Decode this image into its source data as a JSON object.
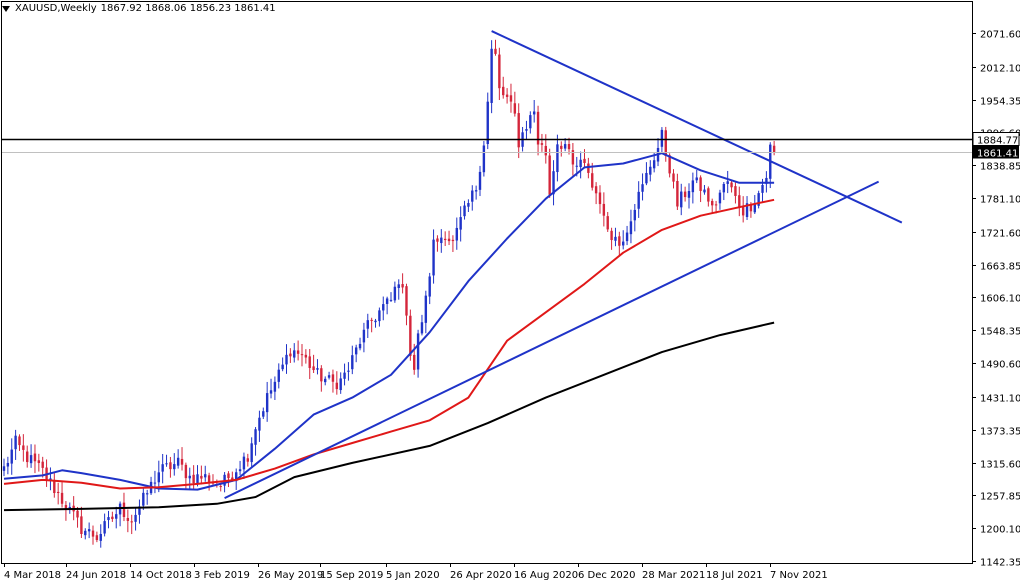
{
  "header": {
    "symbol": "XAUUSD,Weekly",
    "ohlc": "1867.92 1868.06 1856.23 1861.41"
  },
  "colors": {
    "bull": "#1f33c8",
    "bear": "#d4253a",
    "ma_fast": "#1f33c8",
    "ma_mid": "#e01818",
    "ma_slow": "#000000",
    "trendline": "#1f33c8",
    "resistance": "#000000"
  },
  "chart_data": {
    "type": "candlestick",
    "symbol": "XAUUSD",
    "timeframe": "Weekly",
    "ohlc_last": {
      "open": 1867.92,
      "high": 1868.06,
      "low": 1856.23,
      "close": 1861.41
    },
    "x_labels": [
      "4 Mar 2018",
      "24 Jun 2018",
      "14 Oct 2018",
      "3 Feb 2019",
      "26 May 2019",
      "15 Sep 2019",
      "5 Jan 2020",
      "26 Apr 2020",
      "16 Aug 2020",
      "6 Dec 2020",
      "28 Mar 2021",
      "18 Jul 2021",
      "7 Nov 2021"
    ],
    "y_ticks": [
      2071.6,
      2012.1,
      1954.35,
      1896.6,
      1838.85,
      1781.1,
      1721.6,
      1663.85,
      1606.1,
      1548.35,
      1490.6,
      1431.1,
      1373.35,
      1315.6,
      1257.85,
      1200.1,
      1142.35
    ],
    "ylim": [
      1130,
      2110
    ],
    "price_labels": {
      "resistance": "1884.77",
      "current": "1861.41"
    },
    "resistance_level": 1884.77,
    "current_price": 1861.41,
    "waypoints": [
      [
        0,
        1305
      ],
      [
        3,
        1350
      ],
      [
        6,
        1325
      ],
      [
        10,
        1300
      ],
      [
        14,
        1260
      ],
      [
        17,
        1230
      ],
      [
        20,
        1200
      ],
      [
        24,
        1185
      ],
      [
        27,
        1210
      ],
      [
        30,
        1235
      ],
      [
        33,
        1215
      ],
      [
        36,
        1250
      ],
      [
        40,
        1300
      ],
      [
        45,
        1315
      ],
      [
        48,
        1290
      ],
      [
        52,
        1290
      ],
      [
        56,
        1275
      ],
      [
        60,
        1305
      ],
      [
        63,
        1330
      ],
      [
        65,
        1380
      ],
      [
        68,
        1430
      ],
      [
        71,
        1470
      ],
      [
        74,
        1515
      ],
      [
        77,
        1505
      ],
      [
        81,
        1470
      ],
      [
        85,
        1455
      ],
      [
        87,
        1460
      ],
      [
        89,
        1480
      ],
      [
        92,
        1530
      ],
      [
        95,
        1565
      ],
      [
        98,
        1590
      ],
      [
        100,
        1600
      ],
      [
        102,
        1640
      ],
      [
        104,
        1585
      ],
      [
        105,
        1510
      ],
      [
        106,
        1480
      ],
      [
        107,
        1535
      ],
      [
        109,
        1600
      ],
      [
        111,
        1700
      ],
      [
        114,
        1720
      ],
      [
        116,
        1700
      ],
      [
        118,
        1740
      ],
      [
        120,
        1770
      ],
      [
        122,
        1800
      ],
      [
        124,
        1880
      ],
      [
        125,
        1950
      ],
      [
        126,
        2040
      ],
      [
        127,
        2030
      ],
      [
        128,
        1970
      ],
      [
        130,
        1955
      ],
      [
        132,
        1925
      ],
      [
        133,
        1880
      ],
      [
        135,
        1910
      ],
      [
        137,
        1935
      ],
      [
        138,
        1880
      ],
      [
        140,
        1860
      ],
      [
        141,
        1790
      ],
      [
        142,
        1835
      ],
      [
        143,
        1880
      ],
      [
        145,
        1875
      ],
      [
        147,
        1835
      ],
      [
        149,
        1840
      ],
      [
        151,
        1830
      ],
      [
        152,
        1800
      ],
      [
        154,
        1780
      ],
      [
        155,
        1740
      ],
      [
        157,
        1720
      ],
      [
        159,
        1700
      ],
      [
        161,
        1730
      ],
      [
        163,
        1770
      ],
      [
        165,
        1800
      ],
      [
        167,
        1840
      ],
      [
        169,
        1870
      ],
      [
        170,
        1890
      ],
      [
        171,
        1860
      ],
      [
        172,
        1835
      ],
      [
        173,
        1800
      ],
      [
        174,
        1770
      ],
      [
        176,
        1790
      ],
      [
        178,
        1810
      ],
      [
        180,
        1800
      ],
      [
        182,
        1780
      ],
      [
        183,
        1760
      ],
      [
        185,
        1790
      ],
      [
        187,
        1810
      ],
      [
        189,
        1780
      ],
      [
        191,
        1760
      ],
      [
        193,
        1770
      ],
      [
        195,
        1790
      ],
      [
        197,
        1820
      ],
      [
        198,
        1870
      ],
      [
        199,
        1861
      ]
    ],
    "moving_averages": [
      {
        "color": "#1f33c8",
        "points": [
          [
            0,
            1287
          ],
          [
            10,
            1293
          ],
          [
            15,
            1302
          ],
          [
            20,
            1297
          ],
          [
            30,
            1285
          ],
          [
            40,
            1270
          ],
          [
            50,
            1268
          ],
          [
            60,
            1285
          ],
          [
            70,
            1340
          ],
          [
            80,
            1400
          ],
          [
            90,
            1430
          ],
          [
            100,
            1470
          ],
          [
            110,
            1545
          ],
          [
            120,
            1635
          ],
          [
            130,
            1710
          ],
          [
            140,
            1780
          ],
          [
            150,
            1835
          ],
          [
            160,
            1842
          ],
          [
            170,
            1860
          ],
          [
            180,
            1830
          ],
          [
            190,
            1808
          ],
          [
            199,
            1808
          ]
        ]
      },
      {
        "color": "#e01818",
        "points": [
          [
            0,
            1278
          ],
          [
            10,
            1285
          ],
          [
            20,
            1280
          ],
          [
            30,
            1270
          ],
          [
            40,
            1272
          ],
          [
            50,
            1278
          ],
          [
            60,
            1285
          ],
          [
            70,
            1305
          ],
          [
            80,
            1330
          ],
          [
            90,
            1350
          ],
          [
            100,
            1370
          ],
          [
            110,
            1390
          ],
          [
            120,
            1430
          ],
          [
            130,
            1530
          ],
          [
            140,
            1580
          ],
          [
            150,
            1630
          ],
          [
            160,
            1685
          ],
          [
            170,
            1725
          ],
          [
            180,
            1750
          ],
          [
            190,
            1765
          ],
          [
            199,
            1778
          ]
        ]
      },
      {
        "color": "#000000",
        "points": [
          [
            0,
            1232
          ],
          [
            20,
            1234
          ],
          [
            40,
            1237
          ],
          [
            55,
            1243
          ],
          [
            65,
            1255
          ],
          [
            75,
            1290
          ],
          [
            90,
            1315
          ],
          [
            110,
            1345
          ],
          [
            125,
            1385
          ],
          [
            140,
            1430
          ],
          [
            155,
            1470
          ],
          [
            170,
            1510
          ],
          [
            185,
            1540
          ],
          [
            199,
            1562
          ]
        ]
      }
    ],
    "trendlines": [
      {
        "color": "#1f33c8",
        "from": [
          126,
          2075
        ],
        "to": [
          232,
          1738
        ]
      },
      {
        "color": "#1f33c8",
        "from": [
          57,
          1253
        ],
        "to": [
          226,
          1810
        ]
      }
    ]
  }
}
